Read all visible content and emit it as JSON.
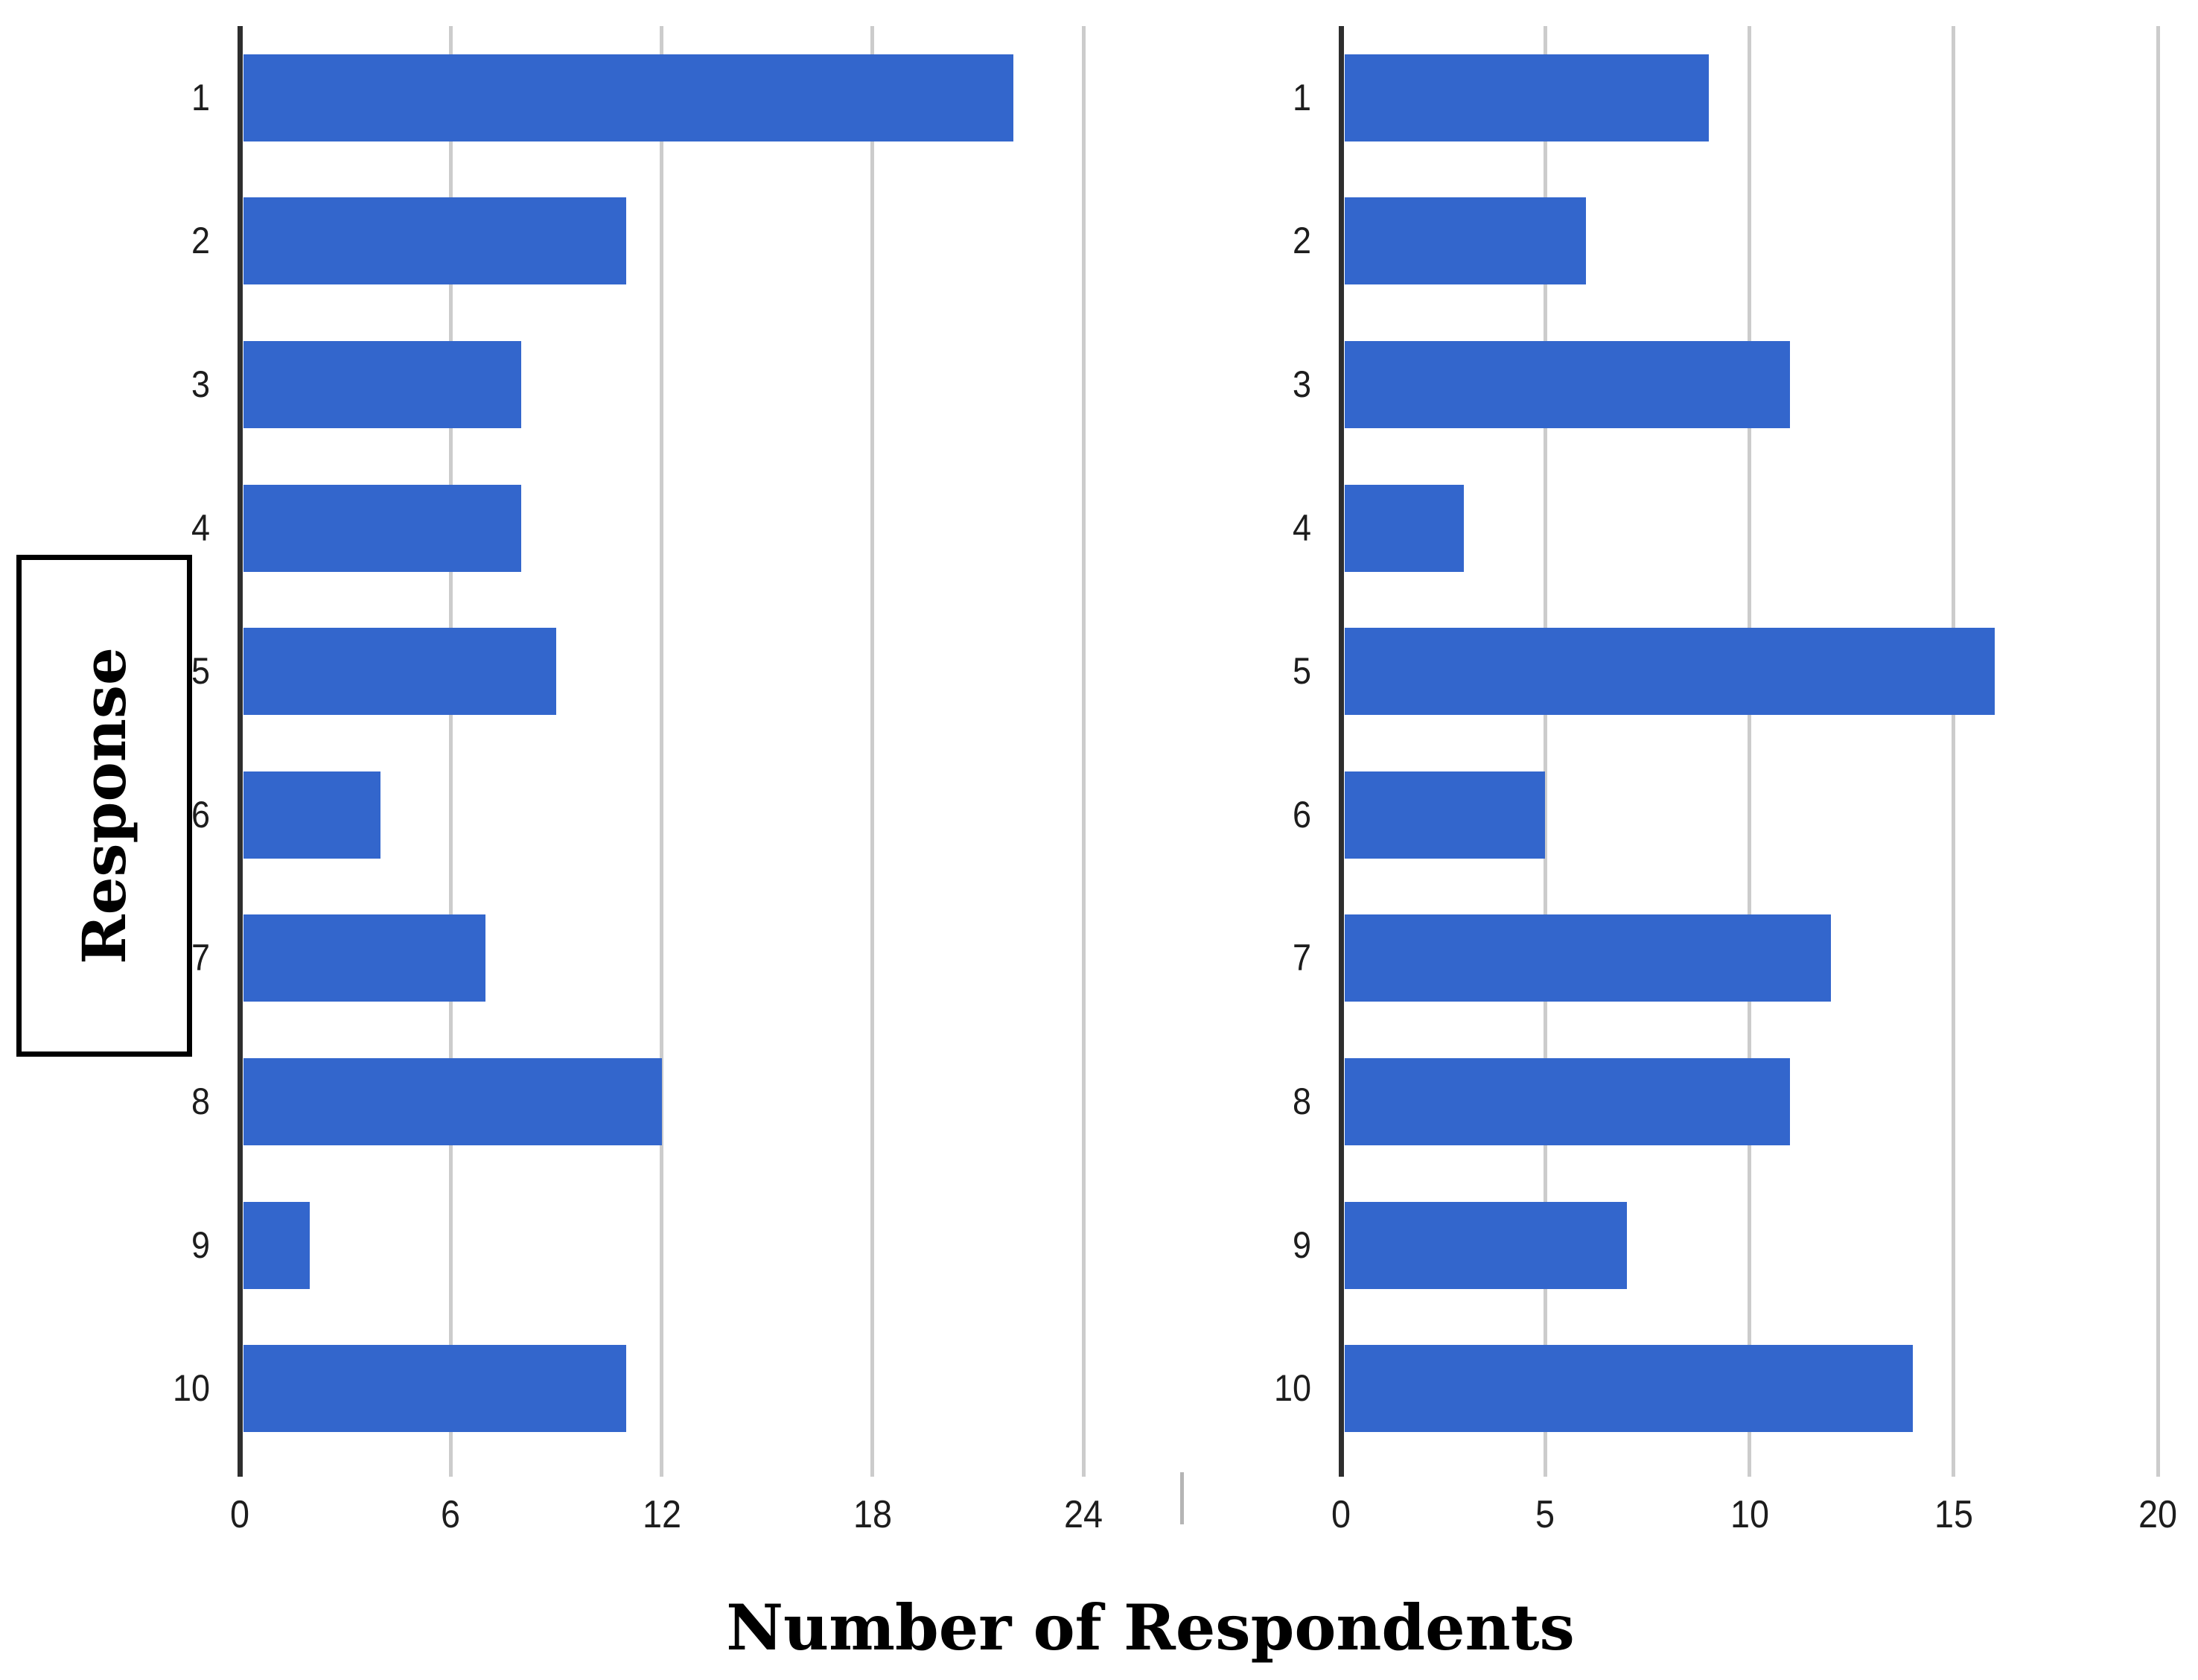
{
  "figure": {
    "ylabel": "Response",
    "xlabel": "Number of Respondents"
  },
  "colors": {
    "bar": "#3366CC",
    "gridline": "#CCCCCC",
    "axis": "#2E2E2E",
    "text": "#1D1D1D"
  },
  "chart_data": [
    {
      "type": "bar",
      "orientation": "horizontal",
      "title": "",
      "xlabel": "Number of Respondents",
      "ylabel": "Response",
      "categories": [
        "1",
        "2",
        "3",
        "4",
        "5",
        "6",
        "7",
        "8",
        "9",
        "10"
      ],
      "values": [
        22,
        11,
        8,
        8,
        9,
        4,
        7,
        12,
        2,
        11
      ],
      "xlim": [
        0,
        24
      ],
      "xticks": [
        0,
        6,
        12,
        18,
        24
      ],
      "grid": true,
      "legend": "none"
    },
    {
      "type": "bar",
      "orientation": "horizontal",
      "title": "",
      "xlabel": "Number of Respondents",
      "ylabel": "Response",
      "categories": [
        "1",
        "2",
        "3",
        "4",
        "5",
        "6",
        "7",
        "8",
        "9",
        "10"
      ],
      "values": [
        9,
        6,
        11,
        3,
        16,
        5,
        12,
        11,
        7,
        14
      ],
      "xlim": [
        0,
        20
      ],
      "xticks": [
        0,
        5,
        10,
        15,
        20
      ],
      "grid": true,
      "legend": "none"
    }
  ]
}
